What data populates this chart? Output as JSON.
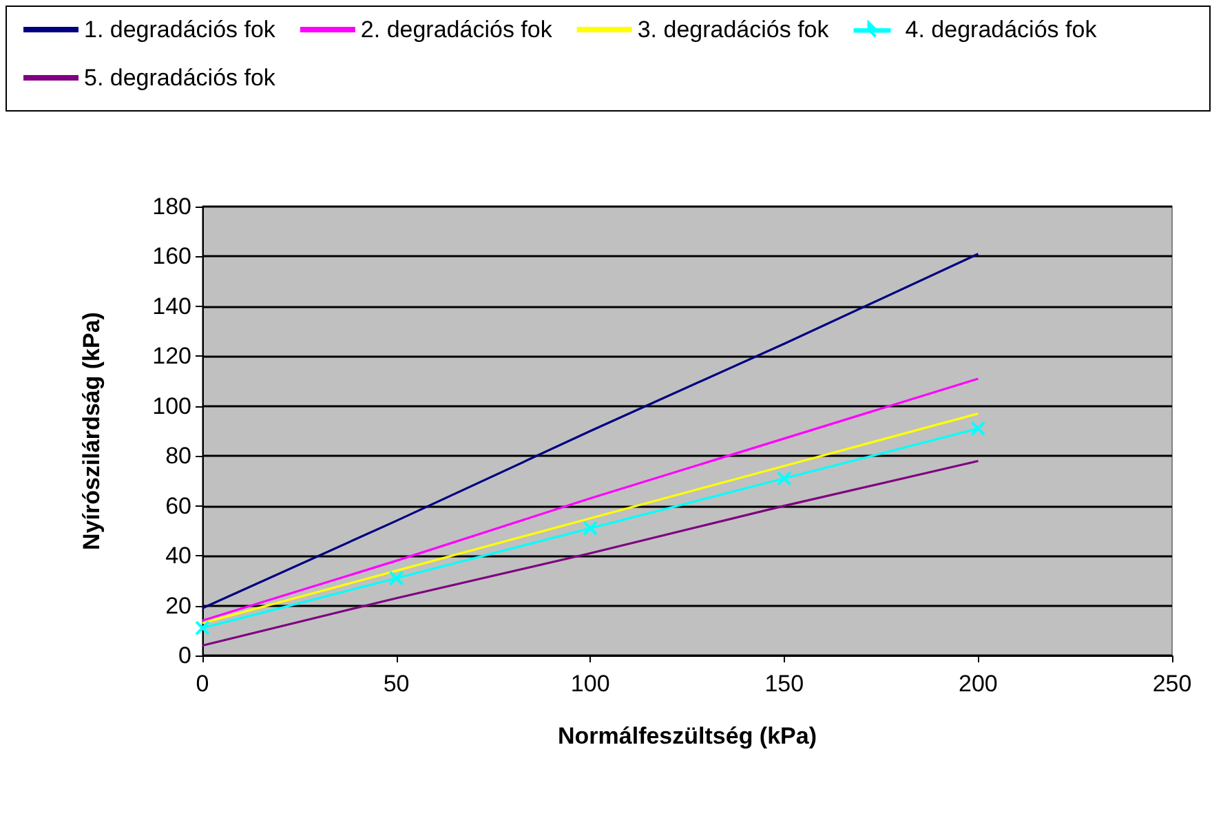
{
  "chart_data": {
    "type": "line",
    "xlabel": "Normálfeszültség (kPa)",
    "ylabel": "Nyírószilárdság (kPa)",
    "x": [
      0,
      50,
      100,
      150,
      200
    ],
    "series": [
      {
        "name": "1. degradációs fok",
        "color": "#000080",
        "values": [
          19,
          54,
          90,
          125,
          161
        ],
        "marker": "none"
      },
      {
        "name": "2. degradációs fok",
        "color": "#ff00ff",
        "values": [
          14,
          38,
          63,
          87,
          111
        ],
        "marker": "none"
      },
      {
        "name": "3. degradációs fok",
        "color": "#ffff00",
        "values": [
          13,
          34,
          55,
          76,
          97
        ],
        "marker": "none"
      },
      {
        "name": "4. degradációs fok",
        "color": "#00ffff",
        "values": [
          11,
          31,
          51,
          71,
          91
        ],
        "marker": "cross"
      },
      {
        "name": "5. degradációs fok",
        "color": "#800080",
        "values": [
          4,
          23,
          41,
          60,
          78
        ],
        "marker": "none"
      }
    ],
    "xlim": [
      0,
      250
    ],
    "xticks": [
      0,
      50,
      100,
      150,
      200,
      250
    ],
    "ylim": [
      0,
      180
    ],
    "yticks": [
      0,
      20,
      40,
      60,
      80,
      100,
      120,
      140,
      160,
      180
    ],
    "grid": "y",
    "legend": "top"
  }
}
